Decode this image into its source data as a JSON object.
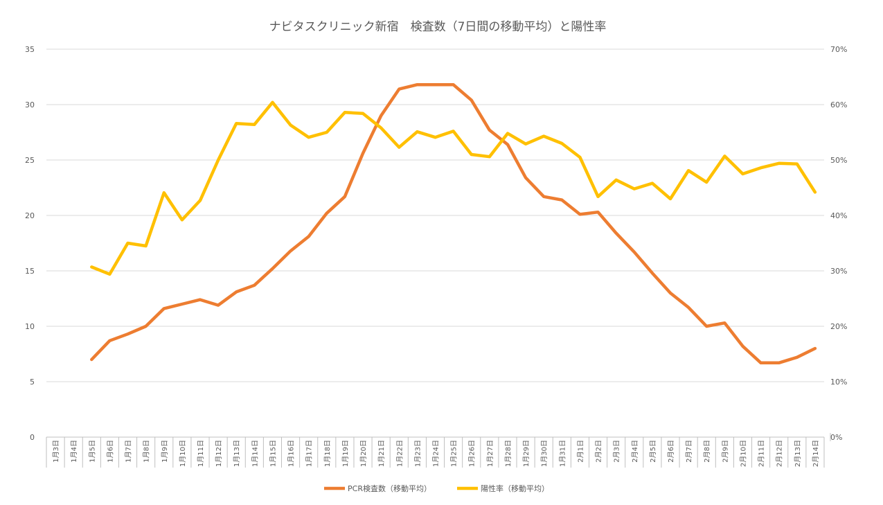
{
  "chart_data": {
    "type": "line",
    "title": "ナビタスクリニック新宿　検査数（7日間の移動平均）と陽性率",
    "xlabel": "",
    "ylabel": "",
    "grid": true,
    "legend_position": "bottom",
    "categories": [
      "1月3日",
      "1月4日",
      "1月5日",
      "1月6日",
      "1月7日",
      "1月8日",
      "1月9日",
      "1月10日",
      "1月11日",
      "1月12日",
      "1月13日",
      "1月14日",
      "1月15日",
      "1月16日",
      "1月17日",
      "1月18日",
      "1月19日",
      "1月20日",
      "1月21日",
      "1月22日",
      "1月23日",
      "1月24日",
      "1月25日",
      "1月26日",
      "1月27日",
      "1月28日",
      "1月29日",
      "1月30日",
      "1月31日",
      "2月1日",
      "2月2日",
      "2月3日",
      "2月4日",
      "2月5日",
      "2月6日",
      "2月7日",
      "2月8日",
      "2月9日",
      "2月10日",
      "2月11日",
      "2月12日",
      "2月13日",
      "2月14日"
    ],
    "y_left": {
      "ylim": [
        0,
        35
      ],
      "ticks": [
        "0",
        "5",
        "10",
        "15",
        "20",
        "25",
        "30",
        "35"
      ]
    },
    "y_right": {
      "ylim": [
        0,
        0.7
      ],
      "ticks": [
        "0%",
        "10%",
        "20%",
        "30%",
        "40%",
        "50%",
        "60%",
        "70%"
      ]
    },
    "series": [
      {
        "name": "PCR検査数（移動平均）",
        "axis": "left",
        "color": "#ED7D31",
        "values": [
          null,
          null,
          7.0,
          8.7,
          9.3,
          10.0,
          11.6,
          12.0,
          12.4,
          11.9,
          13.1,
          13.7,
          15.2,
          16.8,
          18.1,
          20.2,
          21.7,
          25.6,
          29.0,
          31.4,
          31.8,
          31.8,
          31.8,
          30.4,
          27.7,
          26.4,
          23.4,
          21.7,
          21.4,
          20.1,
          20.3,
          18.4,
          16.7,
          14.8,
          13.0,
          11.7,
          10.0,
          10.3,
          8.2,
          6.7,
          6.7,
          7.2,
          8.0
        ]
      },
      {
        "name": "陽性率（移動平均）",
        "axis": "right",
        "color": "#FFC000",
        "values": [
          null,
          null,
          0.307,
          0.294,
          0.35,
          0.345,
          0.441,
          0.392,
          0.427,
          0.5,
          0.566,
          0.564,
          0.604,
          0.563,
          0.541,
          0.55,
          0.586,
          0.584,
          0.558,
          0.523,
          0.551,
          0.541,
          0.552,
          0.51,
          0.506,
          0.548,
          0.529,
          0.543,
          0.53,
          0.505,
          0.434,
          0.464,
          0.448,
          0.458,
          0.43,
          0.481,
          0.46,
          0.507,
          0.475,
          0.486,
          0.494,
          0.493,
          0.442
        ]
      }
    ]
  }
}
